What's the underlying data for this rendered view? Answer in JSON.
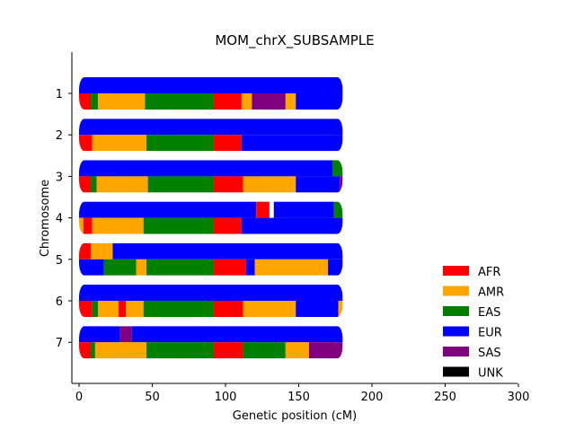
{
  "chart_data": {
    "type": "bar",
    "title": "MOM_chrX_SUBSAMPLE",
    "xlabel": "Genetic position (cM)",
    "ylabel": "Chromosome",
    "xlim": [
      -5,
      300
    ],
    "xticks": [
      0,
      50,
      100,
      150,
      200,
      250,
      300
    ],
    "grid": false,
    "legend_position": "bottom-right",
    "legend": [
      {
        "label": "AFR",
        "color": "#ff0000"
      },
      {
        "label": "AMR",
        "color": "#ffa500"
      },
      {
        "label": "EAS",
        "color": "#008000"
      },
      {
        "label": "EUR",
        "color": "#0000ff"
      },
      {
        "label": "SAS",
        "color": "#800080"
      },
      {
        "label": "UNK",
        "color": "#000000"
      }
    ],
    "chromosomes": [
      {
        "label": "1",
        "hap_top": [
          {
            "start": 0,
            "end": 180,
            "pop": "EUR"
          }
        ],
        "hap_bottom": [
          {
            "start": 0,
            "end": 8,
            "pop": "AFR"
          },
          {
            "start": 8,
            "end": 13,
            "pop": "EAS"
          },
          {
            "start": 13,
            "end": 45,
            "pop": "AMR"
          },
          {
            "start": 45,
            "end": 92,
            "pop": "EAS"
          },
          {
            "start": 92,
            "end": 111,
            "pop": "AFR"
          },
          {
            "start": 111,
            "end": 118,
            "pop": "AMR"
          },
          {
            "start": 118,
            "end": 141,
            "pop": "SAS"
          },
          {
            "start": 141,
            "end": 148,
            "pop": "AMR"
          },
          {
            "start": 148,
            "end": 180,
            "pop": "EUR"
          }
        ]
      },
      {
        "label": "2",
        "hap_top": [
          {
            "start": 0,
            "end": 180,
            "pop": "EUR"
          }
        ],
        "hap_bottom": [
          {
            "start": 0,
            "end": 9,
            "pop": "AFR"
          },
          {
            "start": 9,
            "end": 46,
            "pop": "AMR"
          },
          {
            "start": 46,
            "end": 92,
            "pop": "EAS"
          },
          {
            "start": 92,
            "end": 111,
            "pop": "AFR"
          },
          {
            "start": 111,
            "end": 180,
            "pop": "EUR"
          }
        ]
      },
      {
        "label": "3",
        "hap_top": [
          {
            "start": 0,
            "end": 173,
            "pop": "EUR"
          },
          {
            "start": 173,
            "end": 180,
            "pop": "EAS"
          }
        ],
        "hap_bottom": [
          {
            "start": 0,
            "end": 8,
            "pop": "AFR"
          },
          {
            "start": 8,
            "end": 12,
            "pop": "EAS"
          },
          {
            "start": 12,
            "end": 47,
            "pop": "AMR"
          },
          {
            "start": 47,
            "end": 92,
            "pop": "EAS"
          },
          {
            "start": 92,
            "end": 112,
            "pop": "AFR"
          },
          {
            "start": 112,
            "end": 148,
            "pop": "AMR"
          },
          {
            "start": 148,
            "end": 178,
            "pop": "EUR"
          },
          {
            "start": 178,
            "end": 180,
            "pop": "SAS"
          }
        ]
      },
      {
        "label": "4",
        "hap_top": [
          {
            "start": 0,
            "end": 121,
            "pop": "EUR"
          },
          {
            "start": 121,
            "end": 130,
            "pop": "AFR"
          },
          {
            "start": 130,
            "end": 133,
            "pop": "UNK_GAP"
          },
          {
            "start": 133,
            "end": 174,
            "pop": "EUR"
          },
          {
            "start": 174,
            "end": 180,
            "pop": "EAS"
          }
        ],
        "hap_bottom": [
          {
            "start": 0,
            "end": 3,
            "pop": "AMR"
          },
          {
            "start": 3,
            "end": 9,
            "pop": "AFR"
          },
          {
            "start": 9,
            "end": 44,
            "pop": "AMR"
          },
          {
            "start": 44,
            "end": 92,
            "pop": "EAS"
          },
          {
            "start": 92,
            "end": 111,
            "pop": "AFR"
          },
          {
            "start": 111,
            "end": 180,
            "pop": "EUR"
          }
        ]
      },
      {
        "label": "5",
        "hap_top": [
          {
            "start": 0,
            "end": 8,
            "pop": "AFR"
          },
          {
            "start": 8,
            "end": 23,
            "pop": "AMR"
          },
          {
            "start": 23,
            "end": 180,
            "pop": "EUR"
          }
        ],
        "hap_bottom": [
          {
            "start": 0,
            "end": 17,
            "pop": "EUR"
          },
          {
            "start": 17,
            "end": 39,
            "pop": "EAS"
          },
          {
            "start": 39,
            "end": 46,
            "pop": "AMR"
          },
          {
            "start": 46,
            "end": 92,
            "pop": "EAS"
          },
          {
            "start": 92,
            "end": 114,
            "pop": "AFR"
          },
          {
            "start": 114,
            "end": 120,
            "pop": "EUR"
          },
          {
            "start": 120,
            "end": 170,
            "pop": "AMR"
          },
          {
            "start": 170,
            "end": 180,
            "pop": "EUR"
          }
        ]
      },
      {
        "label": "6",
        "hap_top": [
          {
            "start": 0,
            "end": 180,
            "pop": "EUR"
          }
        ],
        "hap_bottom": [
          {
            "start": 0,
            "end": 9,
            "pop": "AFR"
          },
          {
            "start": 9,
            "end": 13,
            "pop": "EAS"
          },
          {
            "start": 13,
            "end": 27,
            "pop": "AMR"
          },
          {
            "start": 27,
            "end": 32,
            "pop": "AFR"
          },
          {
            "start": 32,
            "end": 44,
            "pop": "AMR"
          },
          {
            "start": 44,
            "end": 92,
            "pop": "EAS"
          },
          {
            "start": 92,
            "end": 112,
            "pop": "AFR"
          },
          {
            "start": 112,
            "end": 148,
            "pop": "AMR"
          },
          {
            "start": 148,
            "end": 177,
            "pop": "EUR"
          },
          {
            "start": 177,
            "end": 180,
            "pop": "AMR"
          }
        ]
      },
      {
        "label": "7",
        "hap_top": [
          {
            "start": 0,
            "end": 28,
            "pop": "EUR"
          },
          {
            "start": 28,
            "end": 36,
            "pop": "SAS"
          },
          {
            "start": 36,
            "end": 180,
            "pop": "EUR"
          }
        ],
        "hap_bottom": [
          {
            "start": 0,
            "end": 8,
            "pop": "AFR"
          },
          {
            "start": 8,
            "end": 11,
            "pop": "EAS"
          },
          {
            "start": 11,
            "end": 46,
            "pop": "AMR"
          },
          {
            "start": 46,
            "end": 92,
            "pop": "EAS"
          },
          {
            "start": 92,
            "end": 112,
            "pop": "AFR"
          },
          {
            "start": 112,
            "end": 141,
            "pop": "EAS"
          },
          {
            "start": 141,
            "end": 157,
            "pop": "AMR"
          },
          {
            "start": 157,
            "end": 180,
            "pop": "SAS"
          }
        ]
      }
    ]
  }
}
